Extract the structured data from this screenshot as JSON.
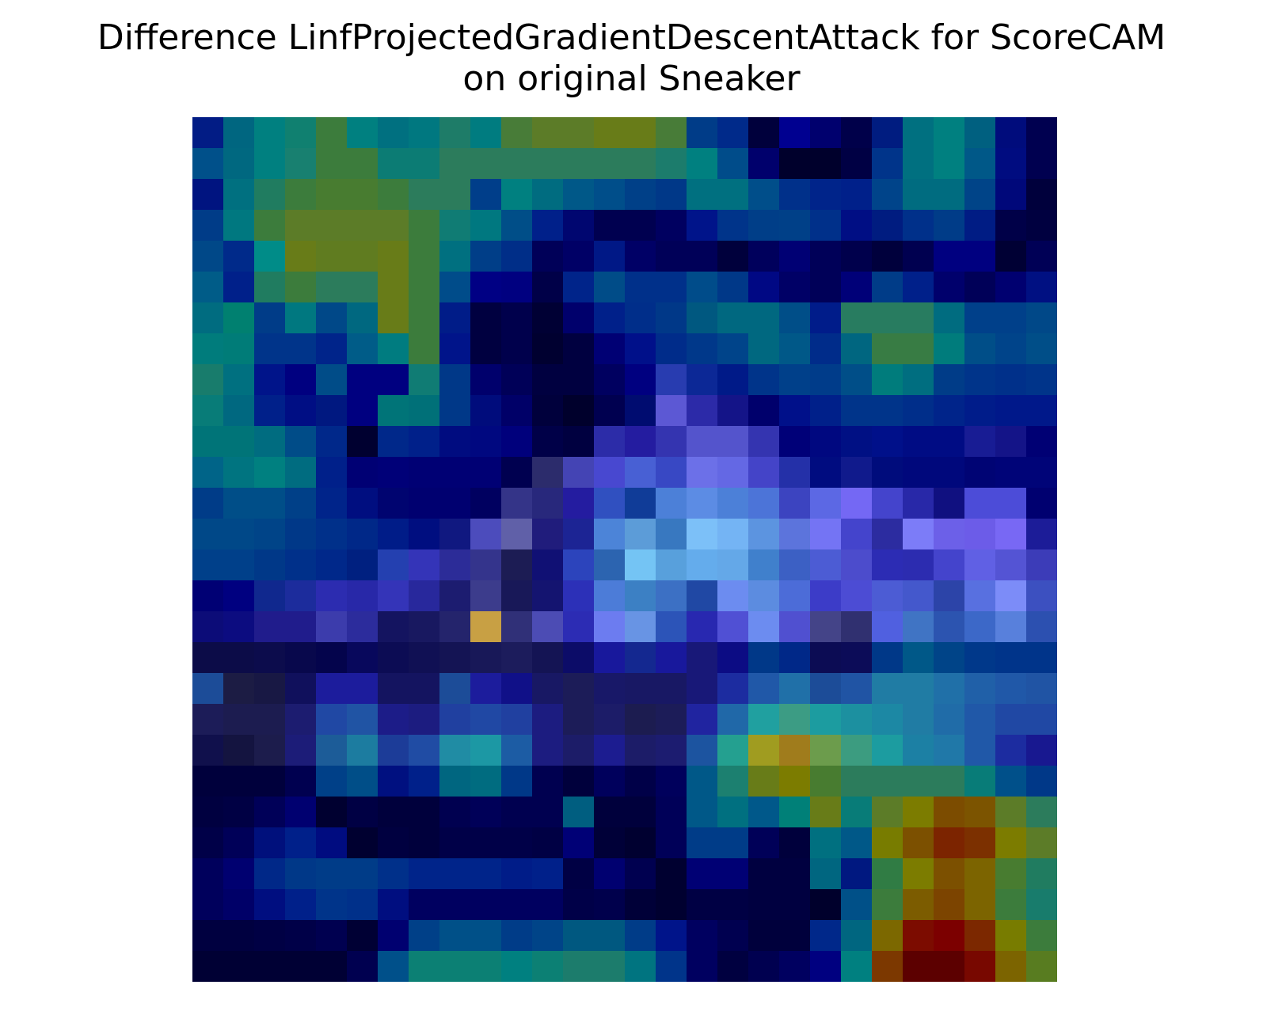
{
  "chart_data": {
    "type": "heatmap",
    "title": "Difference LinfProjectedGradientDescentAttack for ScoreCAM\non original Sneaker",
    "title_lines": [
      "Difference LinfProjectedGradientDescentAttack for ScoreCAM",
      "on original Sneaker"
    ],
    "xlabel": "",
    "ylabel": "",
    "axes": "off",
    "grid": false,
    "rows": 28,
    "cols": 28,
    "cells": [
      [
        "#021c85",
        "#006680",
        "#008080",
        "#108070",
        "#3c7c3c",
        "#008080",
        "#007080",
        "#007880",
        "#1e7c68",
        "#007c80",
        "#487c38",
        "#5c7c28",
        "#5c7c28",
        "#687c18",
        "#687c18",
        "#487c38",
        "#003c88",
        "#002a8a",
        "#00003c",
        "#000090",
        "#00006e",
        "#00004a",
        "#001c80",
        "#007080",
        "#008080",
        "#006080",
        "#000c7c",
        "#000050"
      ],
      [
        "#00508a",
        "#006880",
        "#008080",
        "#188070",
        "#3c7c3c",
        "#3c7c3c",
        "#0c7c74",
        "#0c7c74",
        "#2c7c5c",
        "#2c7c5c",
        "#2c7c5c",
        "#2c7c5c",
        "#2c7c5c",
        "#2c7c5c",
        "#2c7c5c",
        "#1c7c6c",
        "#008080",
        "#004c8a",
        "#00006c",
        "#00002c",
        "#00002c",
        "#000044",
        "#00348a",
        "#007080",
        "#008080",
        "#005888",
        "#000c80",
        "#000050"
      ],
      [
        "#001480",
        "#007080",
        "#207c60",
        "#3c7c3c",
        "#487c30",
        "#487c30",
        "#3c7c3c",
        "#2c7c5c",
        "#2c7c5c",
        "#003e8a",
        "#008080",
        "#006c80",
        "#005888",
        "#004e8a",
        "#004088",
        "#003888",
        "#007080",
        "#007080",
        "#004e8a",
        "#00308a",
        "#00248a",
        "#00208a",
        "#00448a",
        "#006c80",
        "#006c80",
        "#004488",
        "#00087a",
        "#00003c"
      ],
      [
        "#003c88",
        "#007880",
        "#3c7c3c",
        "#5c7c28",
        "#5c7c28",
        "#5c7c28",
        "#5c7c28",
        "#3c7c3c",
        "#107c74",
        "#007880",
        "#004e88",
        "#00208a",
        "#000670",
        "#000050",
        "#000050",
        "#000060",
        "#00148a",
        "#00348a",
        "#003e88",
        "#004088",
        "#00308a",
        "#000e84",
        "#001c80",
        "#00308a",
        "#003c88",
        "#001c84",
        "#000048",
        "#000040"
      ],
      [
        "#004888",
        "#002a8a",
        "#008c88",
        "#687c18",
        "#607c20",
        "#607c20",
        "#687c18",
        "#3c7c3c",
        "#007080",
        "#003e88",
        "#002e88",
        "#000058",
        "#000066",
        "#001886",
        "#000066",
        "#000058",
        "#000058",
        "#00003c",
        "#00005c",
        "#000074",
        "#000058",
        "#00004c",
        "#00003c",
        "#000050",
        "#000080",
        "#000080",
        "#000034",
        "#000056"
      ],
      [
        "#005c88",
        "#00208a",
        "#207c60",
        "#3c7c3c",
        "#2c7c5c",
        "#2c7c5c",
        "#687c18",
        "#3c7c3c",
        "#004c8a",
        "#000084",
        "#000080",
        "#000048",
        "#00248a",
        "#004c88",
        "#00308a",
        "#00308a",
        "#004c8a",
        "#003888",
        "#000884",
        "#000066",
        "#000058",
        "#000078",
        "#003c88",
        "#00208a",
        "#00006c",
        "#000058",
        "#000070",
        "#001082"
      ],
      [
        "#006c80",
        "#008070",
        "#003c88",
        "#007880",
        "#004888",
        "#006880",
        "#687c18",
        "#3c7c3c",
        "#001c88",
        "#000040",
        "#00004c",
        "#000034",
        "#00006c",
        "#00208a",
        "#002e8a",
        "#003888",
        "#005880",
        "#006880",
        "#006880",
        "#004e88",
        "#001c8a",
        "#287c60",
        "#287c60",
        "#287c60",
        "#006c80",
        "#00408a",
        "#00408a",
        "#004888"
      ],
      [
        "#007c7c",
        "#007c78",
        "#00348a",
        "#00348a",
        "#00248a",
        "#005c88",
        "#007c80",
        "#3c7c3c",
        "#00148a",
        "#000040",
        "#00004c",
        "#000030",
        "#000040",
        "#000074",
        "#00108a",
        "#002c8a",
        "#00388a",
        "#00448a",
        "#006880",
        "#005888",
        "#002c8a",
        "#006680",
        "#387c44",
        "#387c44",
        "#007c7c",
        "#004e88",
        "#00448a",
        "#004e88"
      ],
      [
        "#187c6c",
        "#007080",
        "#00148a",
        "#000080",
        "#004c88",
        "#000080",
        "#000080",
        "#107c74",
        "#003888",
        "#00006c",
        "#000058",
        "#000040",
        "#000040",
        "#000060",
        "#000080",
        "#283cb0",
        "#0c2896",
        "#001a88",
        "#00348a",
        "#00408a",
        "#003c8a",
        "#004e88",
        "#007c7c",
        "#006e80",
        "#003c88",
        "#00348a",
        "#00308a",
        "#00348a"
      ],
      [
        "#087c78",
        "#006880",
        "#00208a",
        "#000e84",
        "#001880",
        "#000080",
        "#007478",
        "#007078",
        "#003888",
        "#000c7c",
        "#000068",
        "#00003c",
        "#00002c",
        "#000050",
        "#000c70",
        "#5c58d4",
        "#2c2aa8",
        "#141488",
        "#00006c",
        "#00108a",
        "#00208a",
        "#00348a",
        "#00348a",
        "#002e8a",
        "#00248a",
        "#001c8a",
        "#00188a",
        "#00188a"
      ],
      [
        "#007478",
        "#007478",
        "#006c80",
        "#004c88",
        "#00288a",
        "#000030",
        "#00288a",
        "#00208a",
        "#000c80",
        "#000880",
        "#00007c",
        "#000048",
        "#000040",
        "#2c2ca8",
        "#241ca0",
        "#3434b0",
        "#5454cc",
        "#5454cc",
        "#3434b0",
        "#000078",
        "#000880",
        "#001084",
        "#00108a",
        "#000c84",
        "#000c84",
        "#181c94",
        "#141488",
        "#000074"
      ],
      [
        "#006488",
        "#007480",
        "#008080",
        "#006c80",
        "#00208a",
        "#000074",
        "#000078",
        "#000074",
        "#000074",
        "#000074",
        "#000050",
        "#2c2c6c",
        "#4444b4",
        "#4848d0",
        "#4860d4",
        "#3848c4",
        "#6c70e8",
        "#6468e4",
        "#4444c8",
        "#2430a8",
        "#000c80",
        "#101a8c",
        "#000c7c",
        "#00087c",
        "#00087c",
        "#000474",
        "#000478",
        "#000478"
      ],
      [
        "#003c88",
        "#004e88",
        "#004e88",
        "#004088",
        "#00248a",
        "#000e80",
        "#000470",
        "#000070",
        "#000070",
        "#000060",
        "#343488",
        "#28287c",
        "#241ca0",
        "#3050c0",
        "#103c98",
        "#4c80d8",
        "#5c8ce4",
        "#4c80d8",
        "#4c74d8",
        "#3c44c0",
        "#5c68e4",
        "#7468f4",
        "#4444cc",
        "#2828a8",
        "#101080",
        "#4c4cd8",
        "#4c4cd8",
        "#000070"
      ],
      [
        "#004888",
        "#004888",
        "#004488",
        "#003888",
        "#00308a",
        "#002888",
        "#001c88",
        "#000e80",
        "#101880",
        "#4c4cbc",
        "#6060a8",
        "#201c7c",
        "#1c2494",
        "#4c84d8",
        "#5c9cd8",
        "#3878c0",
        "#7cc0f8",
        "#74b4f4",
        "#5c94e0",
        "#5c74dc",
        "#7474f4",
        "#4444cc",
        "#2c2ca0",
        "#7c7cf8",
        "#6c60e8",
        "#6c5ce8",
        "#7868f4",
        "#1c1c98"
      ],
      [
        "#00408a",
        "#00408a",
        "#003888",
        "#00308a",
        "#00288a",
        "#002080",
        "#2440b0",
        "#3434b8",
        "#2c2c98",
        "#34348c",
        "#1c1c54",
        "#101074",
        "#2c44bc",
        "#2c64b0",
        "#74c4f4",
        "#58a0dc",
        "#64acec",
        "#64a8e8",
        "#4080cc",
        "#3c60c4",
        "#4c5cd4",
        "#4c4ccc",
        "#2c2cb4",
        "#2c2cb0",
        "#4444cc",
        "#6060e4",
        "#5454d4",
        "#3c3cb8"
      ],
      [
        "#000074",
        "#000080",
        "#10288e",
        "#1c2c9c",
        "#2c2cb0",
        "#2828a8",
        "#3434b8",
        "#28289c",
        "#1c1c70",
        "#3c3c8c",
        "#181858",
        "#141470",
        "#2c30b8",
        "#4c7cd8",
        "#3c80c4",
        "#3c70c4",
        "#2048a4",
        "#6c8cf0",
        "#5c8ce0",
        "#4c6cd8",
        "#3c3cc8",
        "#4c4cd4",
        "#4c5cd4",
        "#4458cc",
        "#2c44a8",
        "#5870e0",
        "#7c8cf8",
        "#3c50c0"
      ],
      [
        "#0c0c78",
        "#0c0c80",
        "#201c8c",
        "#201c8c",
        "#3c3cac",
        "#2c2c9c",
        "#141460",
        "#181860",
        "#24246c",
        "#c8a044",
        "#303078",
        "#4c4cb4",
        "#2c2cb4",
        "#6c7cf0",
        "#6894e4",
        "#2c54b8",
        "#2828b0",
        "#5050d4",
        "#6c8cf0",
        "#5050d0",
        "#444488",
        "#303070",
        "#5060e0",
        "#4074c4",
        "#2c54b0",
        "#3c68c8",
        "#5880dc",
        "#2c50b0"
      ],
      [
        "#0c0c48",
        "#0c0c48",
        "#0c0c4c",
        "#08084c",
        "#04044c",
        "#08085c",
        "#0c0c54",
        "#101054",
        "#141454",
        "#181858",
        "#1c1c5c",
        "#141454",
        "#0c0c68",
        "#18189c",
        "#142890",
        "#18189c",
        "#181878",
        "#0c0c84",
        "#003888",
        "#002888",
        "#0c0c54",
        "#0c0c58",
        "#003888",
        "#005888",
        "#004488",
        "#00388a",
        "#00348a",
        "#00348a"
      ],
      [
        "#1c4c98",
        "#1c1c44",
        "#181844",
        "#10105c",
        "#1c1c9c",
        "#1c1c9c",
        "#141460",
        "#141460",
        "#1c4c98",
        "#1c1c9c",
        "#101088",
        "#181864",
        "#1c1c58",
        "#181868",
        "#181864",
        "#181864",
        "#181878",
        "#1c2ca0",
        "#2058a8",
        "#2070a8",
        "#1c4c98",
        "#2054a4",
        "#207ca4",
        "#207ca4",
        "#2070a8",
        "#2060a8",
        "#2058a8",
        "#2054a4"
      ],
      [
        "#1c1c58",
        "#1c1c50",
        "#1c1c50",
        "#1c1c70",
        "#2048a4",
        "#2054a4",
        "#1c1c88",
        "#1c1c80",
        "#2040a0",
        "#2048a4",
        "#2040a0",
        "#1c1c80",
        "#1c1c58",
        "#1c1c68",
        "#1c1c50",
        "#1c1c58",
        "#2024a0",
        "#2068a8",
        "#20a0a0",
        "#3c9c84",
        "#1c9ca0",
        "#1c90a0",
        "#1c88a4",
        "#207ca4",
        "#206ca8",
        "#2058a8",
        "#2048a4",
        "#2048a4"
      ],
      [
        "#10104c",
        "#141440",
        "#1c1c4c",
        "#1c1c78",
        "#1c5c98",
        "#1c7ca0",
        "#1c3c98",
        "#204ca4",
        "#208ca4",
        "#1c98a4",
        "#1c5ca4",
        "#1c1c80",
        "#1c1c68",
        "#1c1c90",
        "#1c1c68",
        "#1c1c70",
        "#1c54a0",
        "#24a090",
        "#a09c20",
        "#a07c1c",
        "#6c9c4c",
        "#3c9c80",
        "#1c9ca0",
        "#1c80a4",
        "#2078a8",
        "#2058a8",
        "#1c2ca0",
        "#181890"
      ],
      [
        "#00003c",
        "#00003c",
        "#00003c",
        "#000050",
        "#004088",
        "#004e88",
        "#001080",
        "#00208a",
        "#006680",
        "#006c80",
        "#003888",
        "#000050",
        "#00003c",
        "#00005c",
        "#000048",
        "#00005c",
        "#005888",
        "#1c8070",
        "#687c18",
        "#7c7c00",
        "#487c30",
        "#2c7c5c",
        "#2c7c5c",
        "#2c7c5c",
        "#2c7c5c",
        "#087c78",
        "#00508a",
        "#003888"
      ],
      [
        "#000040",
        "#000044",
        "#000058",
        "#000070",
        "#000030",
        "#000044",
        "#00003c",
        "#00003c",
        "#000050",
        "#000058",
        "#000050",
        "#000050",
        "#005e80",
        "#00003c",
        "#00003c",
        "#000058",
        "#005888",
        "#007080",
        "#00588a",
        "#008078",
        "#687c18",
        "#087c78",
        "#5c7c28",
        "#7c7c00",
        "#7c4c00",
        "#7c5400",
        "#5c7c28",
        "#2c7c5c"
      ],
      [
        "#000048",
        "#000058",
        "#00107c",
        "#00208a",
        "#000c80",
        "#000030",
        "#000040",
        "#00003c",
        "#000048",
        "#000048",
        "#000048",
        "#000044",
        "#000076",
        "#000038",
        "#000030",
        "#000058",
        "#003c88",
        "#003c88",
        "#000058",
        "#00003c",
        "#007080",
        "#005888",
        "#787c00",
        "#7c5000",
        "#7c2400",
        "#7c3000",
        "#7c7c00",
        "#5c7c28"
      ],
      [
        "#00005c",
        "#000070",
        "#002888",
        "#003888",
        "#003c88",
        "#003c88",
        "#00308a",
        "#00248a",
        "#00248a",
        "#00248a",
        "#001c88",
        "#00208a",
        "#000044",
        "#000070",
        "#000050",
        "#000030",
        "#000074",
        "#000074",
        "#000040",
        "#000040",
        "#006680",
        "#001880",
        "#307c44",
        "#7c7c00",
        "#7c5000",
        "#7c6400",
        "#487c30",
        "#207c60"
      ],
      [
        "#00005c",
        "#000068",
        "#000e80",
        "#00208a",
        "#00348a",
        "#00308a",
        "#000e80",
        "#000060",
        "#000060",
        "#000060",
        "#000060",
        "#000060",
        "#000048",
        "#00004c",
        "#000038",
        "#000030",
        "#000044",
        "#000044",
        "#000040",
        "#000040",
        "#00002c",
        "#005088",
        "#3c7c3c",
        "#7c5c00",
        "#7c4400",
        "#7c6400",
        "#3c7c3c",
        "#187c6c"
      ],
      [
        "#000040",
        "#000040",
        "#000044",
        "#000048",
        "#000050",
        "#000034",
        "#000070",
        "#004088",
        "#005088",
        "#005088",
        "#003c88",
        "#004488",
        "#005880",
        "#005880",
        "#003c88",
        "#00148a",
        "#000060",
        "#000050",
        "#00003c",
        "#00003c",
        "#00288a",
        "#006680",
        "#7c6800",
        "#7c0c00",
        "#7c0000",
        "#7c2800",
        "#787c00",
        "#3c7c3c"
      ],
      [
        "#000034",
        "#000034",
        "#000034",
        "#000034",
        "#000034",
        "#000050",
        "#00508a",
        "#0c8074",
        "#0c8074",
        "#0c8074",
        "#008080",
        "#0c8074",
        "#1c7c6c",
        "#1c7c6c",
        "#007480",
        "#00348a",
        "#000060",
        "#000040",
        "#000050",
        "#000060",
        "#000080",
        "#008080",
        "#7c3800",
        "#5c0000",
        "#5c0000",
        "#780800",
        "#7c6400",
        "#587c20"
      ]
    ]
  }
}
